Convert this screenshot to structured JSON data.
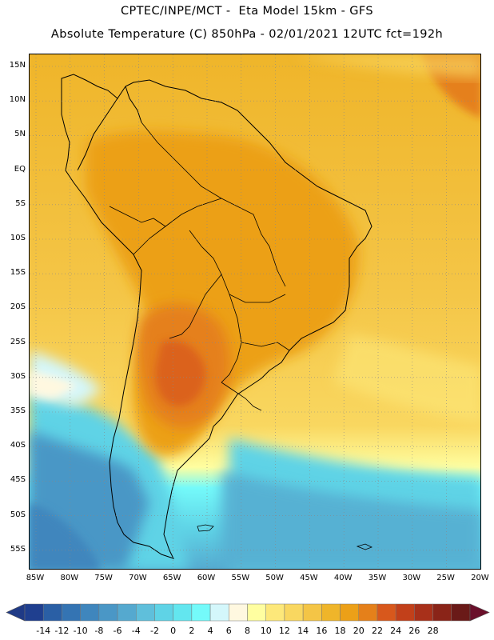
{
  "header": {
    "line1": "CPTEC/INPE/MCT -  Eta Model 15km - GFS",
    "line2": "Absolute Temperature (C) 850hPa - 02/01/2021 12UTC fct=192h"
  },
  "map": {
    "region": "South America",
    "lat_labels": [
      "15N",
      "10N",
      "5N",
      "EQ",
      "5S",
      "10S",
      "15S",
      "20S",
      "25S",
      "30S",
      "35S",
      "40S",
      "45S",
      "50S",
      "55S"
    ],
    "lon_labels": [
      "85W",
      "80W",
      "75W",
      "70W",
      "65W",
      "60W",
      "55W",
      "50W",
      "45W",
      "40W",
      "35W",
      "30W",
      "25W",
      "20W"
    ],
    "grid": "dotted"
  },
  "colorbar": {
    "labels": [
      "-14",
      "-12",
      "-10",
      "-8",
      "-6",
      "-4",
      "-2",
      "0",
      "2",
      "4",
      "6",
      "8",
      "10",
      "12",
      "14",
      "16",
      "18",
      "20",
      "22",
      "24",
      "26",
      "28"
    ],
    "colors": [
      "#1f3f8f",
      "#2a5fa5",
      "#3474b3",
      "#3f86bd",
      "#4a97c6",
      "#55a9cf",
      "#5fbfdb",
      "#5fd3e6",
      "#63e6ef",
      "#74fafa",
      "#d4f7fb",
      "#fff8e0",
      "#fffea0",
      "#fde87a",
      "#f9d760",
      "#f4c546",
      "#efb52a",
      "#eca018",
      "#e5801a",
      "#d8581c",
      "#c2401a",
      "#a8301a",
      "#8a2418",
      "#6a1a18"
    ],
    "under_color": "#1f3a86",
    "over_color": "#6a0f2a"
  }
}
